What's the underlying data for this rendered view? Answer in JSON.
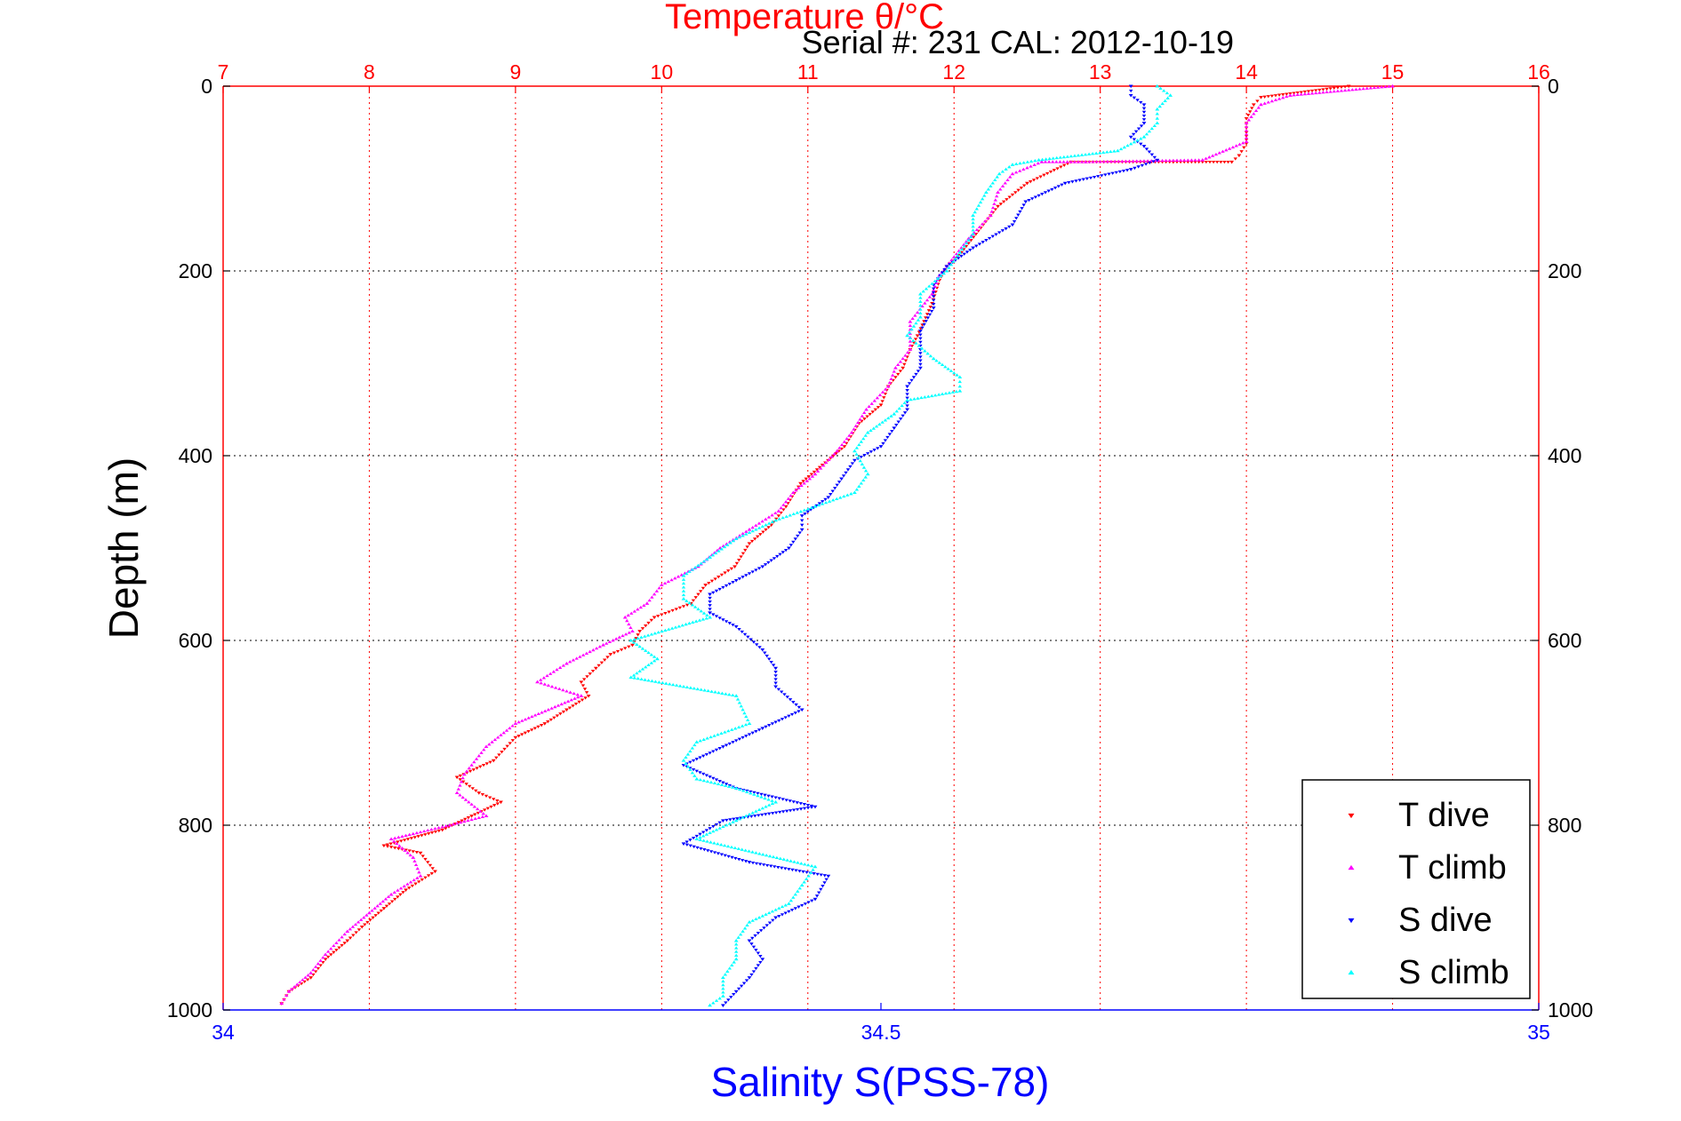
{
  "chart_data": {
    "type": "scatter",
    "title": "Temperature θ/°C",
    "subtitle": "Serial #: 231  CAL: 2012-10-19",
    "top_axis": {
      "label": "Temperature θ/°C",
      "range": [
        7,
        16
      ],
      "ticks": [
        "7",
        "8",
        "9",
        "10",
        "11",
        "12",
        "13",
        "14",
        "15",
        "16"
      ],
      "color": "#ff0000"
    },
    "bottom_axis": {
      "label": "Salinity S(PSS-78)",
      "range": [
        34,
        35
      ],
      "ticks": [
        "34",
        "34.5",
        "35"
      ],
      "color": "#0000ff"
    },
    "y_axis": {
      "label": "Depth (m)",
      "range": [
        0,
        1000
      ],
      "reversed": true,
      "ticks": [
        "0",
        "200",
        "400",
        "600",
        "800",
        "1000"
      ]
    },
    "grid": true,
    "legend_position": "bottom-right",
    "series": [
      {
        "name": "T dive",
        "axis": "temperature",
        "color": "#ff0000",
        "marker": "triangle-down",
        "points": [
          [
            14.7,
            0
          ],
          [
            14.1,
            12
          ],
          [
            14.05,
            20
          ],
          [
            14.0,
            35
          ],
          [
            14.0,
            50
          ],
          [
            14.0,
            62
          ],
          [
            13.95,
            75
          ],
          [
            13.9,
            82
          ],
          [
            13.5,
            82
          ],
          [
            12.8,
            82
          ],
          [
            12.5,
            105
          ],
          [
            12.3,
            130
          ],
          [
            12.15,
            160
          ],
          [
            12.05,
            180
          ],
          [
            11.95,
            195
          ],
          [
            11.9,
            210
          ],
          [
            11.85,
            235
          ],
          [
            11.75,
            270
          ],
          [
            11.7,
            285
          ],
          [
            11.65,
            305
          ],
          [
            11.55,
            325
          ],
          [
            11.5,
            345
          ],
          [
            11.35,
            365
          ],
          [
            11.25,
            390
          ],
          [
            11.1,
            410
          ],
          [
            10.95,
            430
          ],
          [
            10.85,
            455
          ],
          [
            10.75,
            475
          ],
          [
            10.6,
            495
          ],
          [
            10.5,
            520
          ],
          [
            10.3,
            540
          ],
          [
            10.2,
            560
          ],
          [
            9.95,
            575
          ],
          [
            9.85,
            590
          ],
          [
            9.8,
            605
          ],
          [
            9.65,
            615
          ],
          [
            9.55,
            630
          ],
          [
            9.45,
            645
          ],
          [
            9.5,
            660
          ],
          [
            9.35,
            675
          ],
          [
            9.2,
            690
          ],
          [
            9.0,
            705
          ],
          [
            8.85,
            730
          ],
          [
            8.6,
            748
          ],
          [
            8.75,
            765
          ],
          [
            8.9,
            775
          ],
          [
            8.7,
            790
          ],
          [
            8.5,
            805
          ],
          [
            8.1,
            822
          ],
          [
            8.35,
            830
          ],
          [
            8.45,
            850
          ],
          [
            8.25,
            870
          ],
          [
            8.1,
            890
          ],
          [
            7.95,
            910
          ],
          [
            7.85,
            925
          ],
          [
            7.7,
            945
          ],
          [
            7.6,
            965
          ],
          [
            7.45,
            980
          ],
          [
            7.4,
            993
          ]
        ]
      },
      {
        "name": "T climb",
        "axis": "temperature",
        "color": "#ff00ff",
        "marker": "triangle-up",
        "points": [
          [
            15.0,
            0
          ],
          [
            14.3,
            10
          ],
          [
            14.1,
            20
          ],
          [
            14.0,
            40
          ],
          [
            14.0,
            60
          ],
          [
            13.7,
            80
          ],
          [
            12.9,
            82
          ],
          [
            12.6,
            82
          ],
          [
            12.4,
            95
          ],
          [
            12.3,
            115
          ],
          [
            12.25,
            140
          ],
          [
            12.1,
            165
          ],
          [
            12.0,
            185
          ],
          [
            11.9,
            205
          ],
          [
            11.85,
            225
          ],
          [
            11.7,
            255
          ],
          [
            11.7,
            285
          ],
          [
            11.6,
            305
          ],
          [
            11.55,
            325
          ],
          [
            11.4,
            350
          ],
          [
            11.3,
            375
          ],
          [
            11.2,
            395
          ],
          [
            11.05,
            420
          ],
          [
            10.9,
            440
          ],
          [
            10.8,
            460
          ],
          [
            10.6,
            480
          ],
          [
            10.4,
            500
          ],
          [
            10.25,
            520
          ],
          [
            10.0,
            540
          ],
          [
            9.9,
            560
          ],
          [
            9.75,
            575
          ],
          [
            9.8,
            590
          ],
          [
            9.6,
            605
          ],
          [
            9.35,
            625
          ],
          [
            9.15,
            645
          ],
          [
            9.45,
            660
          ],
          [
            9.0,
            690
          ],
          [
            8.8,
            715
          ],
          [
            8.65,
            745
          ],
          [
            8.6,
            765
          ],
          [
            8.8,
            790
          ],
          [
            8.55,
            800
          ],
          [
            8.15,
            815
          ],
          [
            8.3,
            835
          ],
          [
            8.35,
            855
          ],
          [
            8.15,
            875
          ],
          [
            8.0,
            895
          ],
          [
            7.85,
            915
          ],
          [
            7.7,
            940
          ],
          [
            7.6,
            960
          ],
          [
            7.45,
            980
          ],
          [
            7.4,
            993
          ]
        ]
      },
      {
        "name": "S dive",
        "axis": "salinity",
        "color": "#0000ff",
        "marker": "triangle-down",
        "points": [
          [
            34.69,
            0
          ],
          [
            34.69,
            10
          ],
          [
            34.7,
            20
          ],
          [
            34.7,
            40
          ],
          [
            34.69,
            55
          ],
          [
            34.7,
            65
          ],
          [
            34.71,
            80
          ],
          [
            34.69,
            90
          ],
          [
            34.64,
            105
          ],
          [
            34.61,
            125
          ],
          [
            34.6,
            150
          ],
          [
            34.57,
            175
          ],
          [
            34.55,
            195
          ],
          [
            34.54,
            215
          ],
          [
            34.54,
            240
          ],
          [
            34.53,
            265
          ],
          [
            34.53,
            285
          ],
          [
            34.53,
            305
          ],
          [
            34.52,
            325
          ],
          [
            34.52,
            350
          ],
          [
            34.51,
            370
          ],
          [
            34.5,
            390
          ],
          [
            34.48,
            405
          ],
          [
            34.47,
            425
          ],
          [
            34.46,
            445
          ],
          [
            34.44,
            465
          ],
          [
            34.44,
            480
          ],
          [
            34.43,
            500
          ],
          [
            34.41,
            520
          ],
          [
            34.39,
            535
          ],
          [
            34.37,
            550
          ],
          [
            34.37,
            570
          ],
          [
            34.39,
            585
          ],
          [
            34.41,
            610
          ],
          [
            34.42,
            630
          ],
          [
            34.42,
            650
          ],
          [
            34.44,
            675
          ],
          [
            34.41,
            695
          ],
          [
            34.38,
            715
          ],
          [
            34.35,
            735
          ],
          [
            34.39,
            760
          ],
          [
            34.45,
            780
          ],
          [
            34.38,
            795
          ],
          [
            34.35,
            820
          ],
          [
            34.4,
            840
          ],
          [
            34.46,
            855
          ],
          [
            34.45,
            880
          ],
          [
            34.42,
            900
          ],
          [
            34.4,
            925
          ],
          [
            34.41,
            945
          ],
          [
            34.4,
            965
          ],
          [
            34.39,
            980
          ],
          [
            34.38,
            995
          ]
        ]
      },
      {
        "name": "S climb",
        "axis": "salinity",
        "color": "#00ffff",
        "marker": "triangle-up",
        "points": [
          [
            34.71,
            0
          ],
          [
            34.72,
            10
          ],
          [
            34.71,
            25
          ],
          [
            34.71,
            40
          ],
          [
            34.7,
            55
          ],
          [
            34.68,
            70
          ],
          [
            34.62,
            80
          ],
          [
            34.6,
            85
          ],
          [
            34.59,
            95
          ],
          [
            34.58,
            115
          ],
          [
            34.57,
            140
          ],
          [
            34.57,
            160
          ],
          [
            34.56,
            180
          ],
          [
            34.55,
            200
          ],
          [
            34.53,
            225
          ],
          [
            34.53,
            250
          ],
          [
            34.52,
            270
          ],
          [
            34.54,
            295
          ],
          [
            34.56,
            315
          ],
          [
            34.56,
            330
          ],
          [
            34.52,
            340
          ],
          [
            34.51,
            355
          ],
          [
            34.49,
            375
          ],
          [
            34.48,
            395
          ],
          [
            34.49,
            420
          ],
          [
            34.48,
            440
          ],
          [
            34.45,
            455
          ],
          [
            34.42,
            470
          ],
          [
            34.39,
            490
          ],
          [
            34.37,
            510
          ],
          [
            34.35,
            530
          ],
          [
            34.35,
            555
          ],
          [
            34.37,
            575
          ],
          [
            34.31,
            600
          ],
          [
            34.33,
            620
          ],
          [
            34.31,
            640
          ],
          [
            34.39,
            660
          ],
          [
            34.4,
            690
          ],
          [
            34.36,
            710
          ],
          [
            34.35,
            730
          ],
          [
            34.36,
            750
          ],
          [
            34.39,
            760
          ],
          [
            34.42,
            775
          ],
          [
            34.39,
            795
          ],
          [
            34.36,
            815
          ],
          [
            34.45,
            845
          ],
          [
            34.44,
            865
          ],
          [
            34.43,
            885
          ],
          [
            34.4,
            905
          ],
          [
            34.39,
            925
          ],
          [
            34.39,
            945
          ],
          [
            34.38,
            965
          ],
          [
            34.38,
            985
          ],
          [
            34.37,
            995
          ]
        ]
      }
    ]
  }
}
